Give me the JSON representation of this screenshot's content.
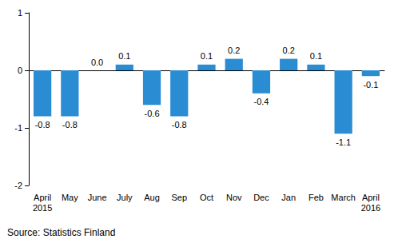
{
  "chart_data": {
    "type": "bar",
    "categories": [
      "April\n2015",
      "May",
      "June",
      "July",
      "Aug",
      "Sep",
      "Oct",
      "Nov",
      "Dec",
      "Jan",
      "Feb",
      "March",
      "April\n2016"
    ],
    "values": [
      -0.8,
      -0.8,
      0.0,
      0.1,
      -0.6,
      -0.8,
      0.1,
      0.2,
      -0.4,
      0.2,
      0.1,
      -1.1,
      -0.1
    ],
    "value_labels": [
      "-0.8",
      "-0.8",
      "0.0",
      "0.1",
      "-0.6",
      "-0.8",
      "0.1",
      "0.2",
      "-0.4",
      "0.2",
      "0.1",
      "-1.1",
      "-0.1"
    ],
    "color": "#2a8dd4",
    "ylim": [
      -2,
      1
    ],
    "yticks": [
      -2,
      -1,
      0,
      1
    ],
    "grid": false,
    "data_labels": true,
    "source": "Source: Statistics Finland"
  }
}
